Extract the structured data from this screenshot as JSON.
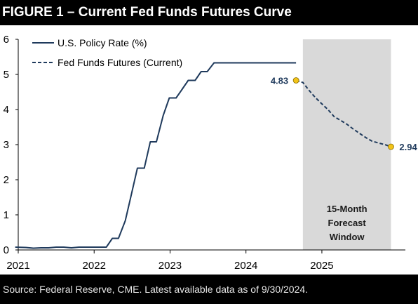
{
  "title": "FIGURE 1 – Current Fed Funds Futures Curve",
  "source": "Source: Federal Reserve, CME. Latest available data as of 9/30/2024.",
  "colors": {
    "line": "#1f3a5c",
    "marker": "#f2c318",
    "shade": "#d9d9d9"
  },
  "chart_data": {
    "type": "line",
    "title": "FIGURE 1 – Current Fed Funds Futures Curve",
    "xlabel": "",
    "ylabel": "",
    "xlim": [
      2021.0,
      2026.1
    ],
    "ylim": [
      0,
      6
    ],
    "y_ticks": [
      "0",
      "1",
      "2",
      "3",
      "4",
      "5",
      "6"
    ],
    "x_ticks": [
      {
        "value": 2021,
        "label": "2021"
      },
      {
        "value": 2022,
        "label": "2022"
      },
      {
        "value": 2023,
        "label": "2023"
      },
      {
        "value": 2024,
        "label": "2024"
      },
      {
        "value": 2025,
        "label": "2025"
      }
    ],
    "grid": false,
    "legend_position": "top-left",
    "series": [
      {
        "name": "U.S. Policy Rate (%)",
        "style": "solid",
        "x": [
          2020.96,
          2021.1,
          2021.2,
          2021.3,
          2021.4,
          2021.5,
          2021.6,
          2021.7,
          2021.8,
          2021.9,
          2022.0,
          2022.08,
          2022.16,
          2022.24,
          2022.32,
          2022.41,
          2022.49,
          2022.57,
          2022.66,
          2022.74,
          2022.82,
          2022.91,
          2022.99,
          2023.08,
          2023.16,
          2023.24,
          2023.33,
          2023.41,
          2023.49,
          2023.58,
          2023.66,
          2023.74,
          2023.83,
          2023.91,
          2023.99,
          2024.08,
          2024.16,
          2024.24,
          2024.33,
          2024.41,
          2024.49,
          2024.58,
          2024.66
        ],
        "values": [
          0.08,
          0.07,
          0.05,
          0.06,
          0.06,
          0.08,
          0.08,
          0.06,
          0.08,
          0.08,
          0.08,
          0.08,
          0.08,
          0.33,
          0.33,
          0.83,
          1.58,
          2.33,
          2.33,
          3.08,
          3.08,
          3.83,
          4.33,
          4.33,
          4.58,
          4.83,
          4.83,
          5.08,
          5.08,
          5.33,
          5.33,
          5.33,
          5.33,
          5.33,
          5.33,
          5.33,
          5.33,
          5.33,
          5.33,
          5.33,
          5.33,
          5.33,
          5.33
        ]
      },
      {
        "name": "Fed Funds Futures (Current)",
        "style": "dashed",
        "x": [
          2024.66,
          2024.75,
          2024.83,
          2024.91,
          2024.99,
          2025.08,
          2025.16,
          2025.24,
          2025.33,
          2025.41,
          2025.49,
          2025.58,
          2025.66,
          2025.74,
          2025.83,
          2025.91
        ],
        "values": [
          4.83,
          4.77,
          4.55,
          4.35,
          4.18,
          4.0,
          3.8,
          3.7,
          3.58,
          3.45,
          3.33,
          3.2,
          3.1,
          3.05,
          3.0,
          2.94
        ]
      }
    ],
    "annotations": [
      {
        "label": "4.83",
        "x": 2024.66,
        "y": 4.83,
        "side": "left"
      },
      {
        "label": "2.94",
        "x": 2025.91,
        "y": 2.94,
        "side": "right"
      }
    ],
    "shaded_region": {
      "x": [
        2024.75,
        2025.91
      ],
      "label_lines": [
        "15-Month",
        "Forecast",
        "Window"
      ]
    }
  }
}
